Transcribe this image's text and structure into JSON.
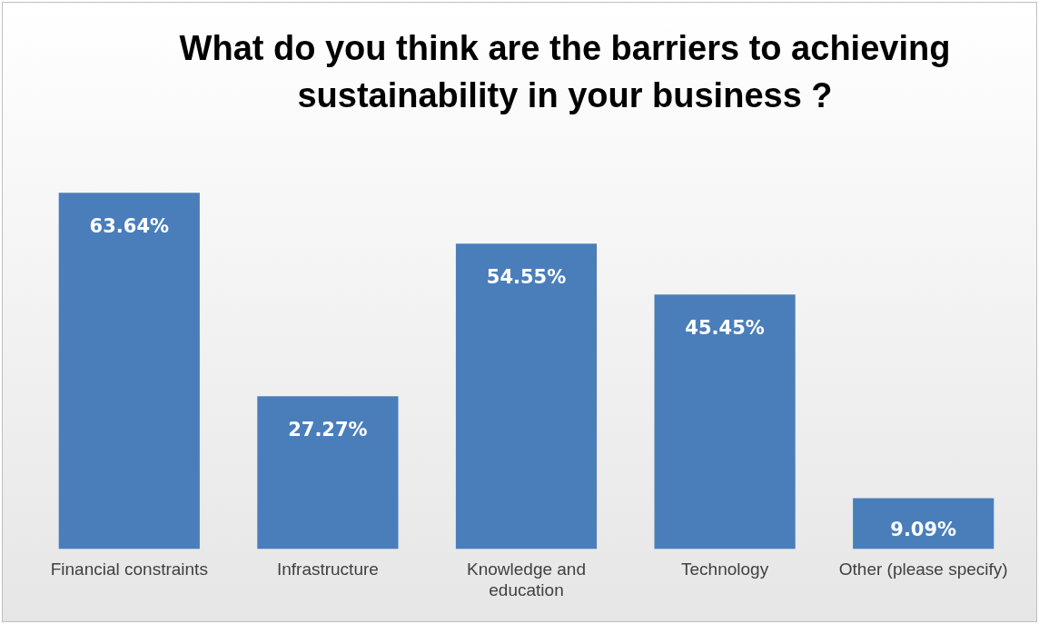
{
  "chart_data": {
    "type": "bar",
    "title": "What do you think are the barriers to achieving sustainability in your business ?",
    "categories": [
      "Financial constraints",
      "Infrastructure",
      "Knowledge and education",
      "Technology",
      "Other (please specify)"
    ],
    "values": [
      63.64,
      27.27,
      54.55,
      45.45,
      9.09
    ],
    "value_labels": [
      "63.64%",
      "27.27%",
      "54.55%",
      "45.45%",
      "9.09%"
    ],
    "color": "#4a7ebb",
    "tick_labels": "x",
    "grid": false,
    "legend": false
  }
}
